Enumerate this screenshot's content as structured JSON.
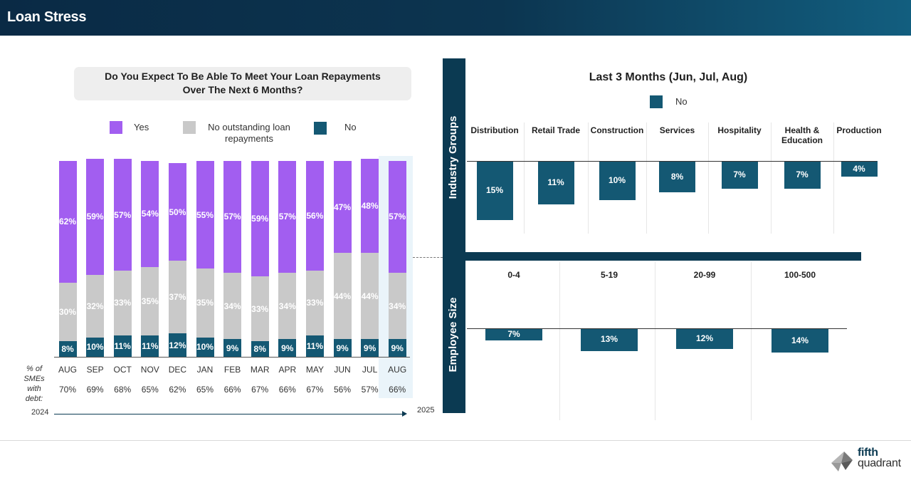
{
  "header": {
    "title": "Loan Stress"
  },
  "question": {
    "line1": "Do You Expect To Be Able To Meet Your Loan Repayments",
    "line2": "Over The Next 6 Months?"
  },
  "legend": {
    "yes": "Yes",
    "none_line1": "No outstanding loan",
    "none_line2": "repayments",
    "no": "No"
  },
  "colors": {
    "yes": "#a25ef0",
    "none": "#c9c9c9",
    "no": "#145873",
    "navy": "#0b3a52",
    "highlight": "#eaf4fa"
  },
  "chart_data": [
    {
      "type": "bar",
      "stacked": true,
      "title": "Do You Expect To Be Able To Meet Your Loan Repayments Over The Next 6 Months?",
      "categories": [
        "AUG",
        "SEP",
        "OCT",
        "NOV",
        "DEC",
        "JAN",
        "FEB",
        "MAR",
        "APR",
        "MAY",
        "JUN",
        "JUL",
        "AUG"
      ],
      "series": [
        {
          "name": "No",
          "values": [
            8,
            10,
            11,
            11,
            12,
            10,
            9,
            8,
            9,
            11,
            9,
            9,
            9
          ]
        },
        {
          "name": "No outstanding loan repayments",
          "values": [
            30,
            32,
            33,
            35,
            37,
            35,
            34,
            33,
            34,
            33,
            44,
            44,
            34
          ]
        },
        {
          "name": "Yes",
          "values": [
            62,
            59,
            57,
            54,
            50,
            55,
            57,
            59,
            57,
            56,
            47,
            48,
            57
          ]
        }
      ],
      "smes_with_debt": [
        "70%",
        "69%",
        "68%",
        "65%",
        "62%",
        "65%",
        "66%",
        "67%",
        "66%",
        "67%",
        "56%",
        "57%",
        "66%"
      ],
      "row_label": "% of SMEs with debt:",
      "year_start": "2024",
      "year_end": "2025",
      "highlight": "AUG"
    },
    {
      "type": "bar",
      "title": "Last 3 Months (Jun, Jul, Aug)",
      "group": "Industry Groups",
      "series_name": "No",
      "categories": [
        "Distribution",
        "Retail Trade",
        "Construction",
        "Services",
        "Hospitality",
        "Health & Education",
        "Production"
      ],
      "values": [
        15,
        11,
        10,
        8,
        7,
        7,
        4
      ],
      "labels": [
        "15%",
        "11%",
        "10%",
        "8%",
        "7%",
        "7%",
        "4%"
      ]
    },
    {
      "type": "bar",
      "title": "Last 3 Months (Jun, Jul, Aug)",
      "group": "Employee Size",
      "series_name": "No",
      "categories": [
        "0-4",
        "5-19",
        "20-99",
        "100-500"
      ],
      "values": [
        7,
        13,
        12,
        14
      ],
      "labels": [
        "7%",
        "13%",
        "12%",
        "14%"
      ]
    }
  ],
  "right": {
    "title": "Last 3 Months (Jun, Jul, Aug)",
    "legend_no": "No",
    "industry_title": "Industry Groups",
    "employee_title": "Employee Size",
    "industry_cats": [
      "Distribution",
      "Retail Trade",
      "Construction",
      "Services",
      "Hospitality",
      "Health &\nEducation",
      "Production"
    ],
    "employee_cats": [
      "0-4",
      "5-19",
      "20-99",
      "100-500"
    ]
  },
  "bottom": {
    "row_label_1": "% of",
    "row_label_2": "SMEs",
    "row_label_3": "with",
    "row_label_4": "debt:",
    "year_start": "2024",
    "year_end": "2025"
  },
  "logo": {
    "line1": "fifth",
    "line2": "quadrant"
  }
}
